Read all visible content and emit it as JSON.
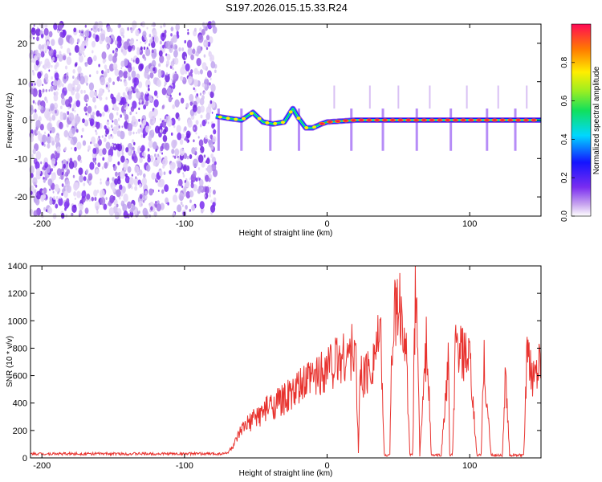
{
  "title": "S197.2026.015.15.33.R24",
  "chart_data": [
    {
      "type": "heatmap",
      "name": "spectrogram",
      "xlabel": "Height of straight line (km)",
      "ylabel": "Frequency (Hz)",
      "xlim": [
        -208,
        150
      ],
      "ylim": [
        -25,
        25
      ],
      "xticks": [
        -200,
        -100,
        0,
        100
      ],
      "yticks": [
        -20,
        -10,
        0,
        10,
        20
      ],
      "noise_region_end_km": -78,
      "signal_track": {
        "x": [
          -78,
          -70,
          -60,
          -52,
          -45,
          -38,
          -30,
          -24,
          -20,
          -15,
          -10,
          -4,
          0,
          20,
          40,
          60,
          80,
          100,
          120,
          150
        ],
        "freq": [
          1,
          0.5,
          0,
          2,
          -0.5,
          -1,
          -0.5,
          3,
          0.5,
          -2,
          -2,
          -1,
          -0.5,
          0,
          0,
          0,
          0,
          0,
          0,
          0
        ]
      },
      "colorbar": {
        "label": "Normalized spectral amplitude",
        "range": [
          0.0,
          1.0
        ],
        "ticks": [
          "0.0",
          "0.2",
          "0.4",
          "0.6",
          "0.8"
        ]
      }
    },
    {
      "type": "line",
      "name": "snr",
      "xlabel": "Height of straight line (km)",
      "ylabel": "SNR (10 * v/v)",
      "xlim": [
        -208,
        150
      ],
      "ylim": [
        0,
        1400
      ],
      "xticks": [
        -200,
        -100,
        0,
        100
      ],
      "yticks": [
        0,
        200,
        400,
        600,
        800,
        1000,
        1200,
        1400
      ],
      "color": "#e8332f",
      "series": {
        "x": [
          -208,
          -180,
          -150,
          -120,
          -90,
          -75,
          -70,
          -65,
          -60,
          -55,
          -50,
          -45,
          -40,
          -35,
          -30,
          -25,
          -20,
          -15,
          -10,
          -5,
          0,
          5,
          10,
          15,
          20,
          22,
          23,
          25,
          30,
          35,
          38,
          40,
          41,
          44,
          45,
          47,
          50,
          55,
          58,
          60,
          62,
          63,
          65,
          70,
          73,
          75,
          80,
          85,
          86,
          88,
          90,
          95,
          100,
          105,
          108,
          110,
          115,
          120,
          123,
          125,
          128,
          130,
          135,
          138,
          140,
          145,
          150
        ],
        "y": [
          30,
          30,
          30,
          30,
          30,
          30,
          35,
          100,
          200,
          250,
          300,
          330,
          380,
          400,
          430,
          460,
          500,
          550,
          580,
          620,
          680,
          700,
          730,
          760,
          780,
          20,
          620,
          600,
          650,
          850,
          800,
          20,
          20,
          20,
          750,
          1000,
          1100,
          900,
          20,
          20,
          1300,
          1100,
          20,
          900,
          20,
          20,
          20,
          700,
          20,
          20,
          800,
          750,
          700,
          20,
          20,
          700,
          20,
          20,
          20,
          600,
          20,
          20,
          20,
          20,
          700,
          600,
          800
        ]
      }
    }
  ]
}
